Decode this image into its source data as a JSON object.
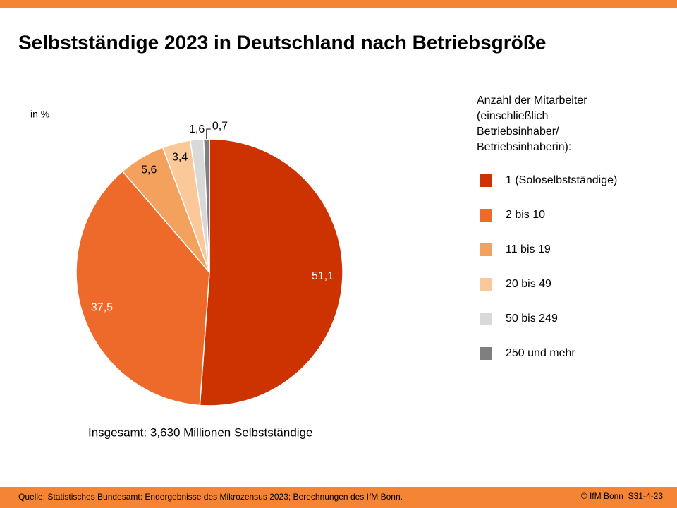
{
  "chart_data": {
    "type": "pie",
    "title": "Selbstständige 2023 in Deutschland nach Betriebsgröße",
    "unit_label": "in %",
    "legend_title": [
      "Anzahl der Mitarbeiter",
      "(einschließlich",
      "Betriebsinhaber/",
      "Betriebsinhaberin):"
    ],
    "categories": [
      "1 (Soloselbstständige)",
      "2 bis 10",
      "11 bis 19",
      "20 bis 49",
      "50 bis 249",
      "250 und mehr"
    ],
    "values": [
      51.1,
      37.5,
      5.6,
      3.4,
      1.6,
      0.7
    ],
    "value_labels": [
      "51,1",
      "37,5",
      "5,6",
      "3,4",
      "1,6",
      "0,7"
    ],
    "colors": [
      "#cc3300",
      "#ee6a2a",
      "#f4a15d",
      "#fbc999",
      "#d9d9d9",
      "#7f7f7f"
    ],
    "note": "Insgesamt: 3,630 Millionen Selbstständige",
    "source": "Quelle: Statistisches Bundesamt: Endergebnisse des Mikrozensus 2023; Berechnungen des IfM Bonn.",
    "credit": "© IfM Bonn  S31-4-23"
  }
}
